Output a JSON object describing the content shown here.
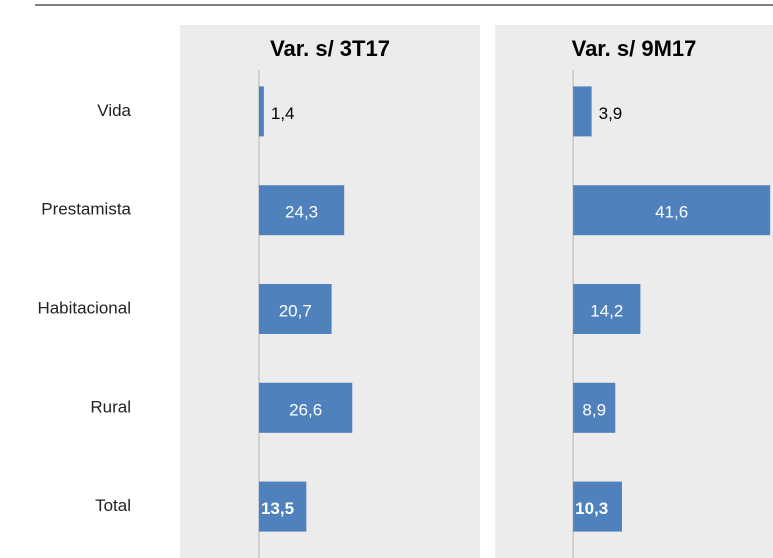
{
  "chart_data": [
    {
      "type": "hbar",
      "title": "Var. s/ 3T17",
      "categories": [
        "Vida",
        "Prestamista",
        "Habitacional",
        "Rural",
        "Total"
      ],
      "values": [
        1.4,
        24.3,
        20.7,
        26.6,
        13.5
      ],
      "value_labels": [
        "1,4",
        "24,3",
        "20,7",
        "26,6",
        "13,5"
      ],
      "color": "#4f81bd",
      "xlim": [
        -22.5,
        63
      ]
    },
    {
      "type": "hbar",
      "title": "Var. s/ 9M17",
      "values": [
        3.9,
        41.6,
        14.2,
        8.9,
        10.3
      ],
      "value_labels": [
        "3,9",
        "41,6",
        "14,2",
        "8,9",
        "10,3"
      ],
      "color": "#4f81bd",
      "xlim": [
        -16.5,
        42.2
      ]
    }
  ]
}
